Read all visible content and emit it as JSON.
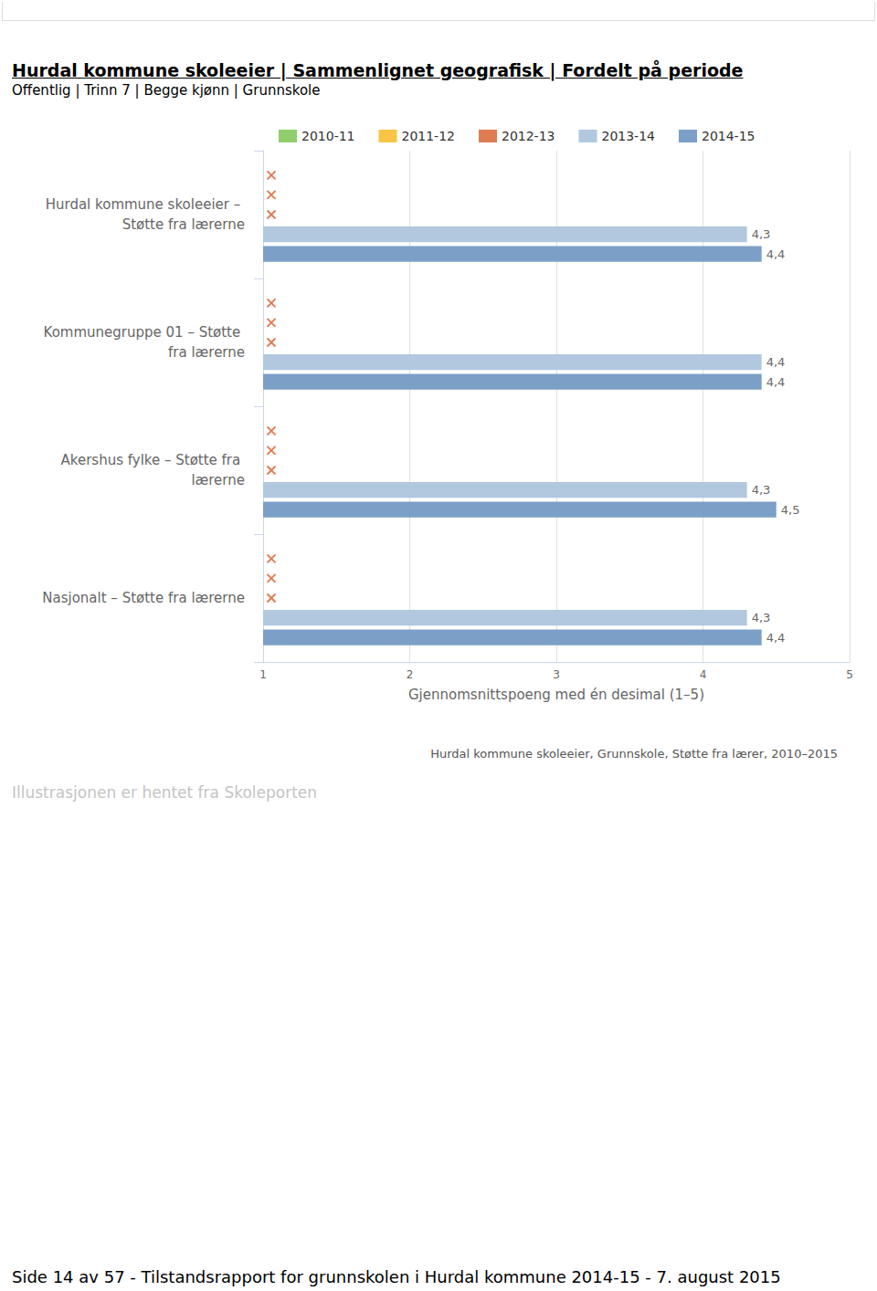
{
  "header": {
    "title": "Hurdal kommune skoleeier | Sammenlignet geografisk | Fordelt på periode",
    "subtitle": "Offentlig | Trinn 7 | Begge kjønn | Grunnskole"
  },
  "chart_data": {
    "type": "bar",
    "orientation": "horizontal",
    "title": "Hurdal kommune skoleeier, Grunnskole, Støtte fra lærer, 2010–2015",
    "x_label": "Gjennomsnittspoeng med én desimal (1–5)",
    "categories": [
      "Hurdal kommune skoleeier – Støtte fra lærerne",
      "Kommunegruppe 01 – Støtte fra lærerne",
      "Akershus fylke – Støtte fra lærerne",
      "Nasjonalt – Støtte fra lærerne"
    ],
    "series": [
      {
        "name": "2010-11",
        "color": "#8fce6b",
        "values": [
          null,
          null,
          null,
          null
        ]
      },
      {
        "name": "2011-12",
        "color": "#f8c545",
        "values": [
          null,
          null,
          null,
          null
        ]
      },
      {
        "name": "2012-13",
        "color": "#e07c52",
        "values": [
          null,
          null,
          null,
          null
        ]
      },
      {
        "name": "2013-14",
        "color": "#b1c8de",
        "values": [
          4.3,
          4.4,
          4.3,
          4.3
        ],
        "value_labels": [
          "4,3",
          "4,4",
          "4,3",
          "4,3"
        ]
      },
      {
        "name": "2014-15",
        "color": "#7c9fc7",
        "values": [
          4.4,
          4.4,
          4.5,
          4.4
        ],
        "value_labels": [
          "4,4",
          "4,4",
          "4,5",
          "4,4"
        ]
      }
    ],
    "xlim": [
      1,
      5
    ],
    "xticks": [
      1,
      2,
      3,
      4,
      5
    ],
    "grid": true,
    "legend": "top",
    "data_labels": true
  },
  "caption": "Illustrasjonen er hentet fra Skoleporten",
  "footer": "Side 14 av 57 - Tilstandsrapport for grunnskolen i Hurdal kommune 2014-15 - 7. august 2015"
}
